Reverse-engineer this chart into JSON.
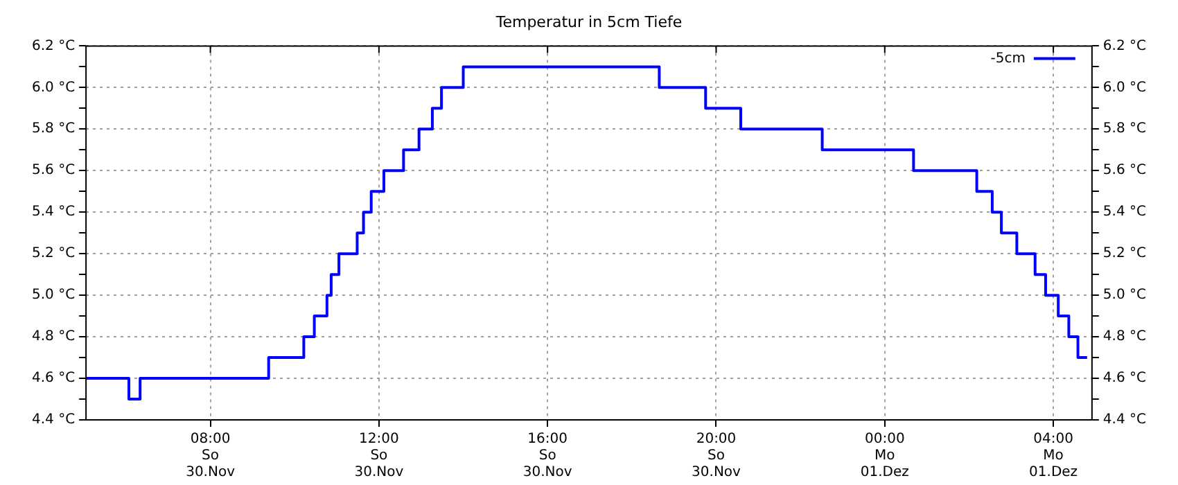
{
  "chart_data": {
    "type": "step",
    "title": "Temperatur in 5cm Tiefe",
    "series": [
      {
        "name": "-5cm",
        "color": "#0000ff",
        "x": [
          "--11-30T05:03",
          "--11-30T06:04",
          "--11-30T06:20",
          "--11-30T09:23",
          "--11-30T10:13",
          "--11-30T10:28",
          "--11-30T10:46",
          "--11-30T10:52",
          "--11-30T11:03",
          "--11-30T11:29",
          "--11-30T11:38",
          "--11-30T11:49",
          "--11-30T12:07",
          "--11-30T12:35",
          "--11-30T12:57",
          "--11-30T13:16",
          "--11-30T13:29",
          "--11-30T14:00",
          "--11-30T18:39",
          "--11-30T19:45",
          "--11-30T20:35",
          "--11-30T22:31",
          "--12-01T00:41",
          "--12-01T02:11",
          "--12-01T02:33",
          "--12-01T02:46",
          "--12-01T03:08",
          "--12-01T03:34",
          "--12-01T03:49",
          "--12-01T04:07",
          "--12-01T04:22",
          "--12-01T04:35",
          "--12-01T04:48"
        ],
        "values": [
          4.6,
          4.5,
          4.6,
          4.7,
          4.8,
          4.9,
          5.0,
          5.1,
          5.2,
          5.3,
          5.4,
          5.5,
          5.6,
          5.7,
          5.8,
          5.9,
          6.0,
          6.1,
          6.0,
          5.9,
          5.8,
          5.7,
          5.6,
          5.5,
          5.4,
          5.3,
          5.2,
          5.1,
          5.0,
          4.9,
          4.8,
          4.7,
          4.7
        ]
      }
    ],
    "xlim": [
      "--11-30T05:03",
      "--12-01T04:55"
    ],
    "xticks": [
      {
        "value": "--11-30T08:00",
        "label": "08:00\nSo\n30.Nov"
      },
      {
        "value": "--11-30T12:00",
        "label": "12:00\nSo\n30.Nov"
      },
      {
        "value": "--11-30T16:00",
        "label": "16:00\nSo\n30.Nov"
      },
      {
        "value": "--11-30T20:00",
        "label": "20:00\nSo\n30.Nov"
      },
      {
        "value": "--12-01T00:00",
        "label": "00:00\nMo\n01.Dez"
      },
      {
        "value": "--12-01T04:00",
        "label": "04:00\nMo\n01.Dez"
      }
    ],
    "ylim": [
      4.4,
      6.2
    ],
    "yticks": [
      {
        "value": 4.4,
        "label": "4.4 °C"
      },
      {
        "value": 4.5,
        "label": null
      },
      {
        "value": 4.6,
        "label": "4.6 °C"
      },
      {
        "value": 4.7,
        "label": null
      },
      {
        "value": 4.8,
        "label": "4.8 °C"
      },
      {
        "value": 4.9,
        "label": null
      },
      {
        "value": 5.0,
        "label": "5.0 °C"
      },
      {
        "value": 5.1,
        "label": null
      },
      {
        "value": 5.2,
        "label": "5.2 °C"
      },
      {
        "value": 5.3,
        "label": null
      },
      {
        "value": 5.4,
        "label": "5.4 °C"
      },
      {
        "value": 5.5,
        "label": null
      },
      {
        "value": 5.6,
        "label": "5.6 °C"
      },
      {
        "value": 5.7,
        "label": null
      },
      {
        "value": 5.8,
        "label": "5.8 °C"
      },
      {
        "value": 5.9,
        "label": null
      },
      {
        "value": 6.0,
        "label": "6.0 °C"
      },
      {
        "value": 6.1,
        "label": null
      },
      {
        "value": 6.2,
        "label": "6.2 °C"
      }
    ],
    "y2lim": [
      4.4,
      6.2
    ],
    "y2ticks": [
      {
        "value": 4.4,
        "label": "4.4 °C"
      },
      {
        "value": 4.5,
        "label": null
      },
      {
        "value": 4.6,
        "label": "4.6 °C"
      },
      {
        "value": 4.7,
        "label": null
      },
      {
        "value": 4.8,
        "label": "4.8 °C"
      },
      {
        "value": 4.9,
        "label": null
      },
      {
        "value": 5.0,
        "label": "5.0 °C"
      },
      {
        "value": 5.1,
        "label": null
      },
      {
        "value": 5.2,
        "label": "5.2 °C"
      },
      {
        "value": 5.3,
        "label": null
      },
      {
        "value": 5.4,
        "label": "5.4 °C"
      },
      {
        "value": 5.5,
        "label": null
      },
      {
        "value": 5.6,
        "label": "5.6 °C"
      },
      {
        "value": 5.7,
        "label": null
      },
      {
        "value": 5.8,
        "label": "5.8 °C"
      },
      {
        "value": 5.9,
        "label": null
      },
      {
        "value": 6.0,
        "label": "6.0 °C"
      },
      {
        "value": 6.1,
        "label": null
      },
      {
        "value": 6.2,
        "label": "6.2 °C"
      }
    ],
    "grid": true,
    "legend": "top right"
  }
}
